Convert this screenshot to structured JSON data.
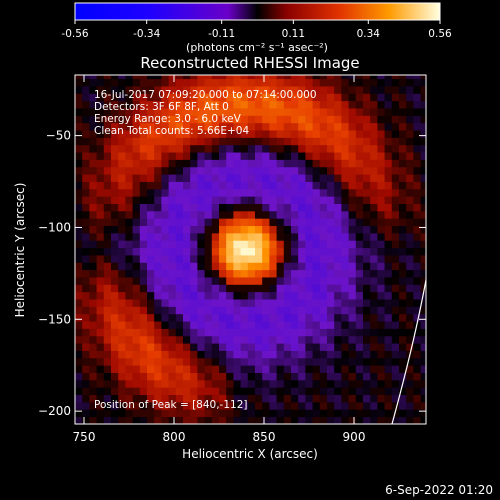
{
  "colorbar": {
    "tick_labels": [
      "-0.56",
      "-0.34",
      "-0.11",
      "0.11",
      "0.34",
      "0.56"
    ],
    "unit_label": "(photons cm⁻² s⁻¹ asec⁻²)"
  },
  "chart_data": {
    "type": "heatmap",
    "title": "Reconstructed RHESSI Image",
    "xlabel": "Heliocentric X (arcsec)",
    "ylabel": "Heliocentric Y (arcsec)",
    "xlim": [
      745,
      940
    ],
    "ylim": [
      -207,
      -17
    ],
    "x_ticks": [
      750,
      800,
      850,
      900
    ],
    "x_tick_labels": [
      "750",
      "800",
      "850",
      "900"
    ],
    "y_ticks": [
      -50,
      -100,
      -150,
      -200
    ],
    "y_tick_labels": [
      "−50",
      "−100",
      "−150",
      "−200"
    ],
    "value_range": [
      -0.56,
      0.56
    ],
    "annotations": [
      "16-Jul-2017 07:09:20.000 to 07:14:00.000",
      "Detectors: 3F 6F 8F, Att 0",
      "Energy Range: 3.0 - 6.0 keV",
      "Clean     Total counts: 5.66E+04"
    ],
    "peak_label": "Position of Peak = [840,-112]",
    "peak": [
      840,
      -112
    ]
  },
  "footer": {
    "timestamp": "6-Sep-2022 01:20"
  },
  "colors": {
    "background": "#000000",
    "text": "#ffffff"
  }
}
